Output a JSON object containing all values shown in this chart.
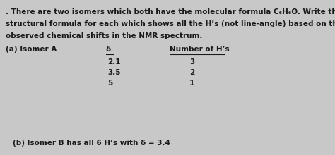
{
  "bg_color": "#c8c8c8",
  "title_line1": ". There are two isomers which both have the molecular formula C₆H₆O. Write the",
  "title_line2": "structural formula for each which shows all the H’s (not line-angle) based on the",
  "title_line3": "observed chemical shifts in the NMR spectrum.",
  "isomer_a_label": "(a) Isomer A",
  "col1_header": "δ",
  "col2_header": "Number of H’s",
  "table_rows": [
    [
      "2.1",
      "3"
    ],
    [
      "3.5",
      "2"
    ],
    [
      "5",
      "1"
    ]
  ],
  "isomer_b_line": "(b) Isomer B has all 6 H’s with δ = 3.4",
  "font_size": 7.5,
  "text_color": "#1a1a1a"
}
